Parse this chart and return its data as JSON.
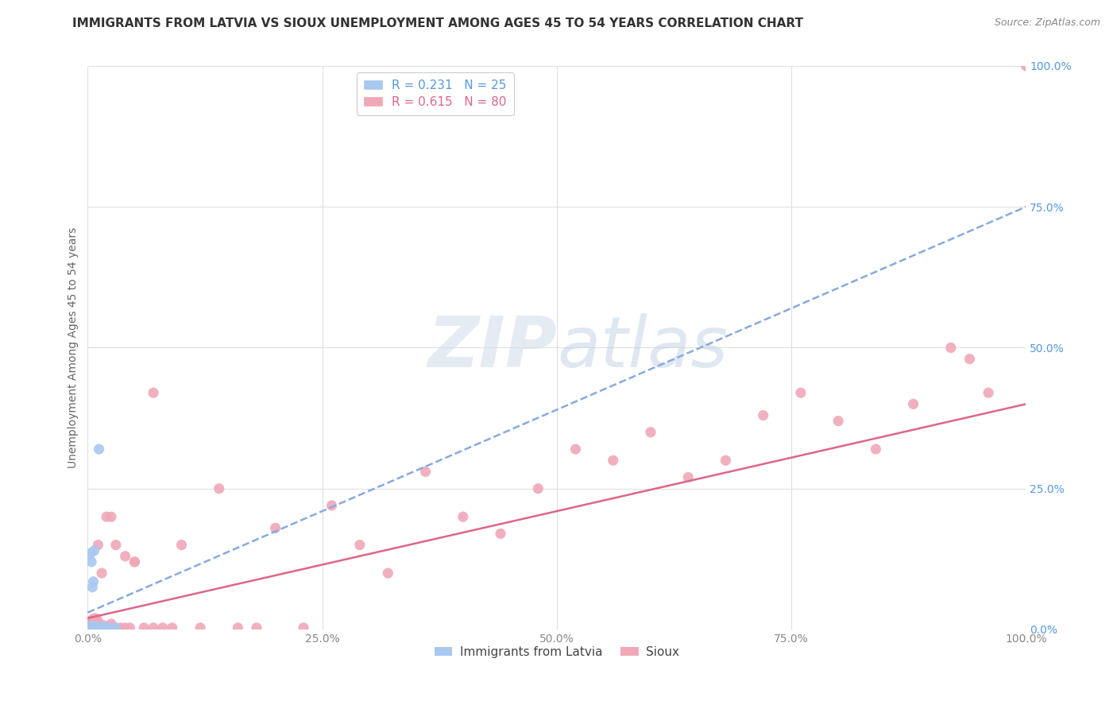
{
  "title": "IMMIGRANTS FROM LATVIA VS SIOUX UNEMPLOYMENT AMONG AGES 45 TO 54 YEARS CORRELATION CHART",
  "source": "Source: ZipAtlas.com",
  "ylabel": "Unemployment Among Ages 45 to 54 years",
  "xlim": [
    0,
    1.0
  ],
  "ylim": [
    0,
    1.0
  ],
  "xtick_labels": [
    "0.0%",
    "25.0%",
    "50.0%",
    "75.0%",
    "100.0%"
  ],
  "xtick_positions": [
    0.0,
    0.25,
    0.5,
    0.75,
    1.0
  ],
  "ytick_labels": [
    "0.0%",
    "25.0%",
    "50.0%",
    "75.0%",
    "100.0%"
  ],
  "ytick_positions": [
    0.0,
    0.25,
    0.5,
    0.75,
    1.0
  ],
  "grid_color": "#e0e0e0",
  "background_color": "#ffffff",
  "latvia_color": "#a8c8f0",
  "sioux_color": "#f0a8b8",
  "latvia_line_color": "#88aadd",
  "sioux_line_color": "#dd6688",
  "latvia_R": 0.231,
  "latvia_N": 25,
  "sioux_R": 0.615,
  "sioux_N": 80,
  "latvia_line_x0": 0.0,
  "latvia_line_y0": 0.03,
  "latvia_line_x1": 1.0,
  "latvia_line_y1": 0.75,
  "sioux_line_x0": 0.0,
  "sioux_line_y0": 0.02,
  "sioux_line_x1": 1.0,
  "sioux_line_y1": 0.4,
  "latvia_x": [
    0.001,
    0.001,
    0.001,
    0.002,
    0.002,
    0.002,
    0.003,
    0.003,
    0.003,
    0.004,
    0.004,
    0.004,
    0.005,
    0.005,
    0.006,
    0.006,
    0.007,
    0.008,
    0.009,
    0.01,
    0.012,
    0.015,
    0.018,
    0.022,
    0.03
  ],
  "latvia_y": [
    0.003,
    0.005,
    0.004,
    0.003,
    0.005,
    0.004,
    0.003,
    0.005,
    0.135,
    0.003,
    0.006,
    0.12,
    0.003,
    0.075,
    0.003,
    0.085,
    0.14,
    0.003,
    0.005,
    0.005,
    0.32,
    0.003,
    0.005,
    0.003,
    0.003
  ],
  "sioux_x": [
    0.001,
    0.001,
    0.001,
    0.002,
    0.002,
    0.002,
    0.003,
    0.003,
    0.003,
    0.003,
    0.004,
    0.004,
    0.004,
    0.005,
    0.005,
    0.005,
    0.006,
    0.006,
    0.007,
    0.007,
    0.008,
    0.008,
    0.009,
    0.01,
    0.01,
    0.011,
    0.012,
    0.013,
    0.014,
    0.015,
    0.016,
    0.018,
    0.02,
    0.022,
    0.025,
    0.028,
    0.03,
    0.035,
    0.04,
    0.045,
    0.05,
    0.06,
    0.07,
    0.08,
    0.09,
    0.1,
    0.12,
    0.14,
    0.16,
    0.18,
    0.2,
    0.23,
    0.26,
    0.29,
    0.32,
    0.36,
    0.4,
    0.44,
    0.48,
    0.52,
    0.56,
    0.6,
    0.64,
    0.68,
    0.72,
    0.76,
    0.8,
    0.84,
    0.88,
    0.92,
    0.94,
    0.96,
    0.02,
    0.03,
    0.04,
    0.015,
    0.025,
    0.05,
    0.07,
    1.0
  ],
  "sioux_y": [
    0.003,
    0.005,
    0.008,
    0.003,
    0.006,
    0.01,
    0.003,
    0.006,
    0.01,
    0.015,
    0.003,
    0.006,
    0.012,
    0.003,
    0.006,
    0.018,
    0.003,
    0.01,
    0.003,
    0.015,
    0.003,
    0.02,
    0.003,
    0.004,
    0.018,
    0.15,
    0.003,
    0.005,
    0.003,
    0.003,
    0.008,
    0.003,
    0.003,
    0.005,
    0.01,
    0.003,
    0.003,
    0.003,
    0.003,
    0.003,
    0.12,
    0.003,
    0.003,
    0.003,
    0.003,
    0.15,
    0.003,
    0.25,
    0.003,
    0.003,
    0.18,
    0.003,
    0.22,
    0.15,
    0.1,
    0.28,
    0.2,
    0.17,
    0.25,
    0.32,
    0.3,
    0.35,
    0.27,
    0.3,
    0.38,
    0.42,
    0.37,
    0.32,
    0.4,
    0.5,
    0.48,
    0.42,
    0.2,
    0.15,
    0.13,
    0.1,
    0.2,
    0.12,
    0.42,
    1.0
  ],
  "legend_latvia_label": "R = 0.231   N = 25",
  "legend_sioux_label": "R = 0.615   N = 80",
  "legend_bottom_latvia": "Immigrants from Latvia",
  "legend_bottom_sioux": "Sioux",
  "title_fontsize": 11,
  "axis_label_fontsize": 10,
  "tick_fontsize": 10,
  "legend_fontsize": 11,
  "source_fontsize": 9
}
